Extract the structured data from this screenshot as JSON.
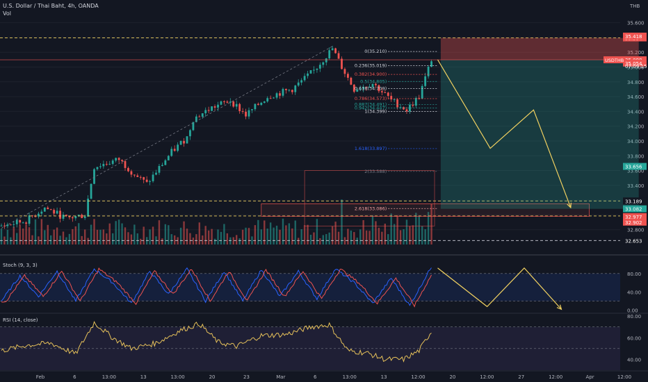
{
  "header": {
    "title": "U.S. Dollar / Thai Baht, 4h, OANDA",
    "vol_label": "Vol",
    "currency": "THB"
  },
  "colors": {
    "background": "#131722",
    "up": "#26a69a",
    "down": "#ef5350",
    "stoch_k": "#2962ff",
    "stoch_d": "#ef5350",
    "rsi": "#e6c15a",
    "projection": "#f0d060",
    "fib_band": "#f7a3a3"
  },
  "chart_data": [
    {
      "type": "candlestick",
      "name": "price",
      "y_ticks": [
        "35.600",
        "35.400",
        "35.200",
        "35.000",
        "34.800",
        "34.600",
        "34.400",
        "34.200",
        "34.000",
        "33.800",
        "33.600",
        "33.400",
        "33.200",
        "33.000",
        "32.800"
      ],
      "ylim": [
        32.6,
        35.7
      ],
      "x_ticks": [
        "Feb",
        "6",
        "13:00",
        "13",
        "13:00",
        "20",
        "23",
        "Mar",
        "6",
        "13:00",
        "13",
        "12:00",
        "20",
        "12:00",
        "27",
        "12:00",
        "Apr",
        "12:00"
      ],
      "key_points": [
        {
          "t": 0,
          "v": 32.85
        },
        {
          "t": 8,
          "v": 32.92
        },
        {
          "t": 14,
          "v": 33.1
        },
        {
          "t": 21,
          "v": 32.95
        },
        {
          "t": 27,
          "v": 33.0
        },
        {
          "t": 30,
          "v": 33.65
        },
        {
          "t": 38,
          "v": 33.75
        },
        {
          "t": 43,
          "v": 33.55
        },
        {
          "t": 47,
          "v": 33.42
        },
        {
          "t": 55,
          "v": 33.85
        },
        {
          "t": 60,
          "v": 34.05
        },
        {
          "t": 62,
          "v": 34.3
        },
        {
          "t": 68,
          "v": 34.45
        },
        {
          "t": 74,
          "v": 34.55
        },
        {
          "t": 79,
          "v": 34.35
        },
        {
          "t": 86,
          "v": 34.6
        },
        {
          "t": 94,
          "v": 34.7
        },
        {
          "t": 101,
          "v": 34.95
        },
        {
          "t": 107,
          "v": 35.25
        },
        {
          "t": 110,
          "v": 35.0
        },
        {
          "t": 114,
          "v": 34.7
        },
        {
          "t": 120,
          "v": 34.78
        },
        {
          "t": 126,
          "v": 34.55
        },
        {
          "t": 131,
          "v": 34.42
        },
        {
          "t": 135,
          "v": 34.6
        },
        {
          "t": 139,
          "v": 35.1
        }
      ],
      "horizontal_levels": [
        {
          "label": "35.394",
          "price": 35.394,
          "color": "#ef5350",
          "style": "dashed-yellow"
        },
        {
          "label": "35.418",
          "price": 35.418,
          "color": "#ef5350"
        },
        {
          "label": "35.098",
          "price": 35.098,
          "color": "#ef5350"
        },
        {
          "label": "35.054",
          "price": 35.054,
          "color": "#ef5350"
        },
        {
          "label": "33.656",
          "price": 33.656,
          "color": "#26a69a"
        },
        {
          "label": "33.189",
          "price": 33.189,
          "color": "#131722",
          "style": "dashed-yellow"
        },
        {
          "label": "33.082",
          "price": 33.082,
          "color": "#26a69a"
        },
        {
          "label": "32.986",
          "price": 32.986,
          "color": "#131722",
          "style": "dashed-yellow"
        },
        {
          "label": "32.977",
          "price": 32.977,
          "color": "#ef5350"
        },
        {
          "label": "32.902",
          "price": 32.902,
          "color": "#ef5350"
        },
        {
          "label": "32.653",
          "price": 32.653,
          "color": "#131722",
          "style": "dashed-white"
        }
      ],
      "symbol_tag": "USDTHB",
      "countdown": "07:09:15",
      "fib_levels": [
        {
          "label": "0(35.210)",
          "price": 35.21,
          "color": "#d1d4dc"
        },
        {
          "label": "0.236(35.019)",
          "price": 35.019,
          "color": "#d1d4dc"
        },
        {
          "label": "0.382(34.900)",
          "price": 34.9,
          "color": "#ef5350"
        },
        {
          "label": "0.5(34.805)",
          "price": 34.805,
          "color": "#26a69a"
        },
        {
          "label": "0.618(34.709)",
          "price": 34.709,
          "color": "#d1d4dc"
        },
        {
          "label": "0.786(34.573)",
          "price": 34.573,
          "color": "#ef5350"
        },
        {
          "label": "0.887(34.491)",
          "price": 34.491,
          "color": "#26a69a"
        },
        {
          "label": "0.942(34.447)",
          "price": 34.447,
          "color": "#26a69a"
        },
        {
          "label": "1(34.399)",
          "price": 34.399,
          "color": "#d1d4dc"
        },
        {
          "label": "1.618(33.897)",
          "price": 33.897,
          "color": "#2962ff"
        },
        {
          "label": "2(33.588)",
          "price": 33.588,
          "color": "#787b86"
        },
        {
          "label": "2.618(33.086)",
          "price": 33.086,
          "color": "#f7a3a3"
        }
      ],
      "position": {
        "stop": 35.394,
        "entry": 35.098,
        "target": 33.082
      },
      "projection_path": [
        {
          "t": 141,
          "v": 35.1
        },
        {
          "t": 158,
          "v": 33.9
        },
        {
          "t": 172,
          "v": 34.42
        },
        {
          "t": 184,
          "v": 33.1
        }
      ]
    },
    {
      "type": "line",
      "name": "stochastic",
      "title": "Stoch (9, 3, 3)",
      "y_ticks": [
        "80.00",
        "40.00",
        "0.00"
      ],
      "ylim": [
        -5,
        110
      ],
      "key_points": [
        {
          "t": 0,
          "v": 20
        },
        {
          "t": 6,
          "v": 75
        },
        {
          "t": 12,
          "v": 30
        },
        {
          "t": 18,
          "v": 85
        },
        {
          "t": 24,
          "v": 20
        },
        {
          "t": 30,
          "v": 90
        },
        {
          "t": 36,
          "v": 60
        },
        {
          "t": 42,
          "v": 15
        },
        {
          "t": 48,
          "v": 85
        },
        {
          "t": 54,
          "v": 35
        },
        {
          "t": 60,
          "v": 90
        },
        {
          "t": 66,
          "v": 20
        },
        {
          "t": 72,
          "v": 85
        },
        {
          "t": 78,
          "v": 20
        },
        {
          "t": 84,
          "v": 88
        },
        {
          "t": 90,
          "v": 30
        },
        {
          "t": 96,
          "v": 85
        },
        {
          "t": 102,
          "v": 25
        },
        {
          "t": 108,
          "v": 90
        },
        {
          "t": 114,
          "v": 60
        },
        {
          "t": 120,
          "v": 15
        },
        {
          "t": 126,
          "v": 70
        },
        {
          "t": 132,
          "v": 10
        },
        {
          "t": 139,
          "v": 95
        }
      ],
      "projection_path": [
        {
          "t": 141,
          "v": 92
        },
        {
          "t": 157,
          "v": 8
        },
        {
          "t": 169,
          "v": 92
        },
        {
          "t": 181,
          "v": 2
        }
      ]
    },
    {
      "type": "line",
      "name": "rsi",
      "title": "RSI (14, close)",
      "y_ticks": [
        "80.00",
        "60.00",
        "40.00"
      ],
      "ylim": [
        30,
        82
      ],
      "key_points": [
        {
          "t": 0,
          "v": 48
        },
        {
          "t": 8,
          "v": 53
        },
        {
          "t": 16,
          "v": 55
        },
        {
          "t": 24,
          "v": 45
        },
        {
          "t": 30,
          "v": 74
        },
        {
          "t": 36,
          "v": 60
        },
        {
          "t": 42,
          "v": 50
        },
        {
          "t": 50,
          "v": 55
        },
        {
          "t": 58,
          "v": 67
        },
        {
          "t": 64,
          "v": 73
        },
        {
          "t": 70,
          "v": 56
        },
        {
          "t": 76,
          "v": 52
        },
        {
          "t": 84,
          "v": 62
        },
        {
          "t": 92,
          "v": 63
        },
        {
          "t": 100,
          "v": 70
        },
        {
          "t": 106,
          "v": 72
        },
        {
          "t": 112,
          "v": 48
        },
        {
          "t": 118,
          "v": 46
        },
        {
          "t": 124,
          "v": 40
        },
        {
          "t": 130,
          "v": 40
        },
        {
          "t": 135,
          "v": 48
        },
        {
          "t": 139,
          "v": 66
        }
      ]
    }
  ]
}
